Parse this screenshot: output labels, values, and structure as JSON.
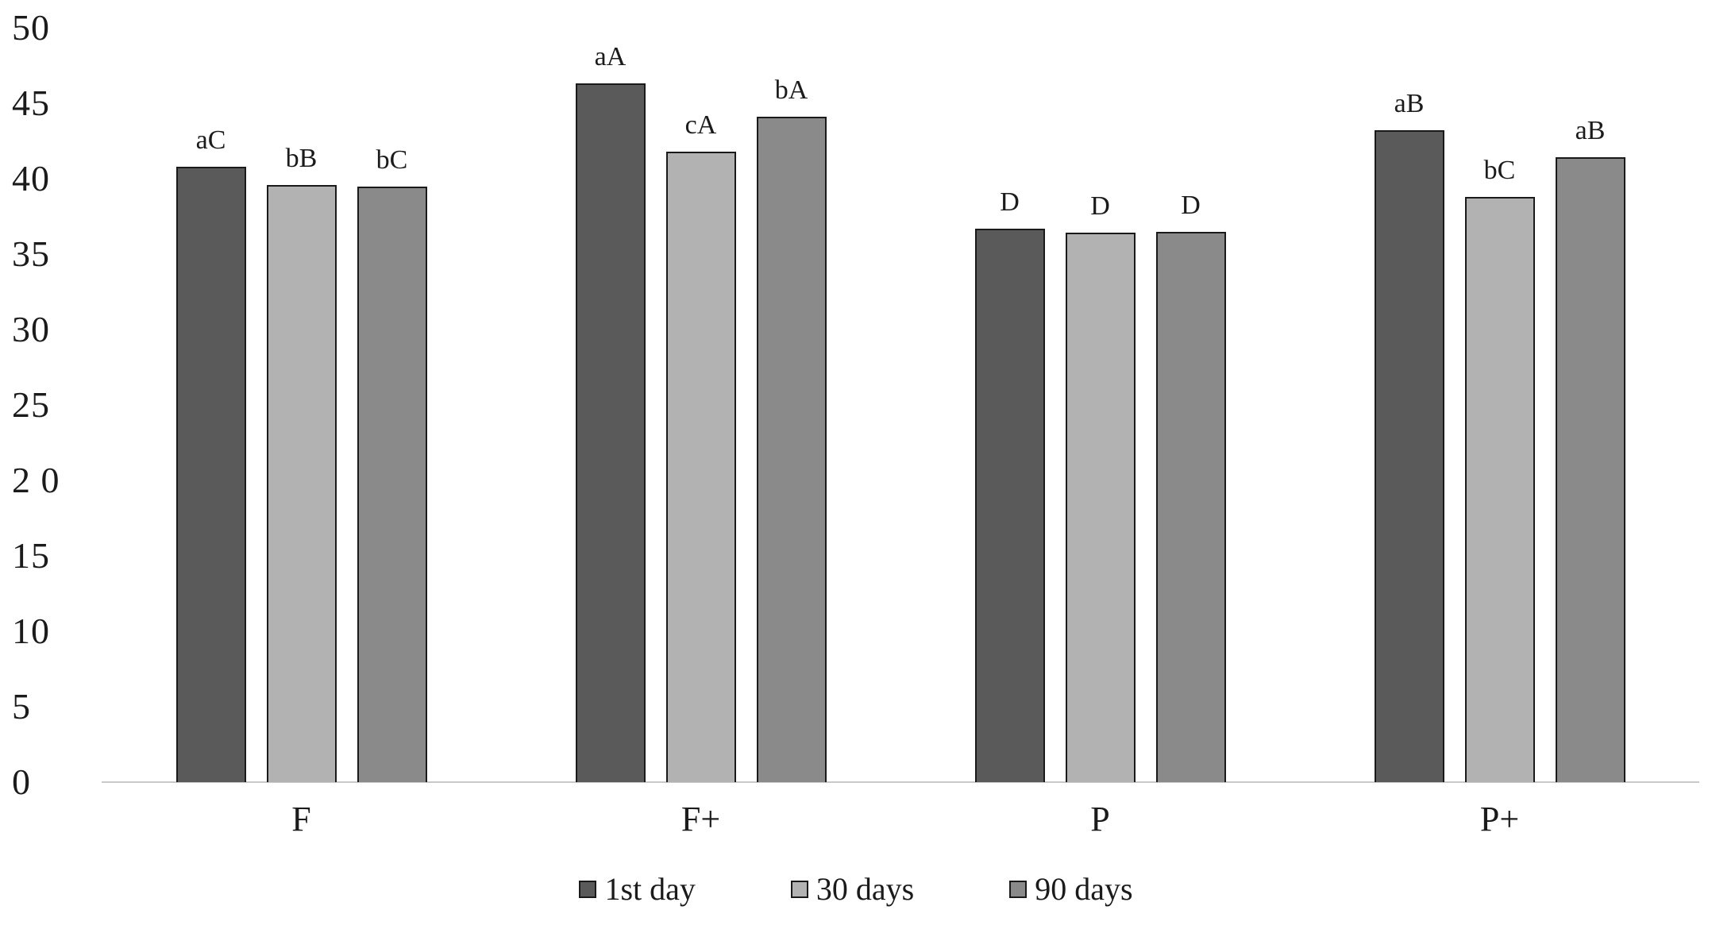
{
  "chart_data": {
    "type": "bar",
    "title": "",
    "xlabel": "",
    "ylabel": "",
    "categories": [
      "F",
      "F+",
      "P",
      "P+"
    ],
    "series": [
      {
        "name": "1st day",
        "color": "#5a5a5a",
        "values": [
          40.8,
          46.3,
          36.7,
          43.2
        ],
        "bar_labels": [
          "aC",
          "aA",
          "D",
          "aB"
        ]
      },
      {
        "name": "30 days",
        "color": "#b2b2b2",
        "values": [
          39.6,
          41.8,
          36.4,
          38.8
        ],
        "bar_labels": [
          "bB",
          "cA",
          "D",
          "bC"
        ]
      },
      {
        "name": "90 days",
        "color": "#8a8a8a",
        "values": [
          39.5,
          44.1,
          36.5,
          41.4
        ],
        "bar_labels": [
          "bC",
          "bA",
          "D",
          "aB"
        ]
      }
    ],
    "ylim": [
      0,
      50
    ],
    "yticks": [
      0,
      5,
      10,
      15,
      20,
      25,
      30,
      35,
      40,
      45,
      50
    ],
    "ytick_labels": [
      "0",
      "5",
      "10",
      "15",
      "2 0",
      "25",
      "30",
      "35",
      "40",
      "45",
      "50"
    ],
    "grid": false,
    "legend_position": "bottom",
    "bar_border_color": "#1a1a1a",
    "axis_line_color": "#c9c9c9",
    "text_color": "#1b1b1b"
  }
}
